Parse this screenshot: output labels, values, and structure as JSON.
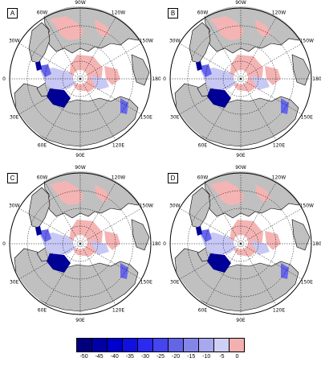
{
  "panels": [
    {
      "id": "A",
      "label": "A"
    },
    {
      "id": "B",
      "label": "B"
    },
    {
      "id": "C",
      "label": "C"
    },
    {
      "id": "D",
      "label": "D"
    }
  ],
  "longitude_labels": {
    "deg60w": "60W",
    "deg90w": "90W",
    "deg120w": "120W",
    "deg150w": "150W",
    "deg180": "180",
    "deg150e": "150E",
    "deg120e": "120E",
    "deg90e": "90E",
    "deg60e": "60E",
    "deg30e": "30E",
    "deg0": "0",
    "deg30w": "30W"
  },
  "colorbar": {
    "labels": [
      "-50",
      "-45",
      "-40",
      "-35",
      "-30",
      "-25",
      "-20",
      "-15",
      "-10",
      "-5",
      "0"
    ],
    "colors": [
      "#00007f",
      "#0000a8",
      "#0000cc",
      "#1010e0",
      "#2a2af0",
      "#4545ee",
      "#6464e6",
      "#8585e8",
      "#a8a8ee",
      "#cfcff6",
      "#f2b0b0"
    ]
  },
  "colors": {
    "land": "#c0c0c0",
    "ocean": "#ffffff",
    "positive": "#f4b4b4",
    "negative_light": "#c8c8f4",
    "negative_mid": "#6666ee",
    "negative_dark": "#000099"
  }
}
